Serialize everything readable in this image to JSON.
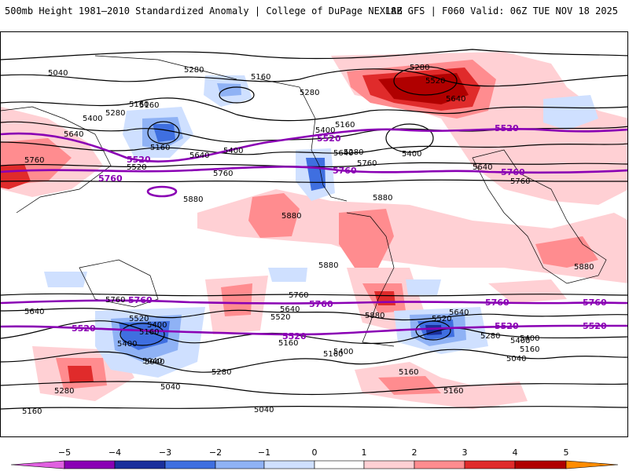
{
  "header": {
    "left_title": "500mb Height 1981–2010 Standardized Anomaly | College of DuPage NEXLAB",
    "right_title": "18Z GFS | F060 Valid: 06Z TUE NOV 18 2025"
  },
  "colors": {
    "purple_contour": "#8a00b4",
    "pos1": "#ffd0d4",
    "pos2": "#ff8c8f",
    "pos3": "#e02b2b",
    "pos4": "#b00000",
    "neg1": "#cfe0ff",
    "neg2": "#8fb2f5",
    "neg3": "#3f6fe0",
    "neg4": "#1a2f9c"
  },
  "map": {
    "contour_labels_black": [
      "5040",
      "5280",
      "5160",
      "5160",
      "5400",
      "5280",
      "5640",
      "5760",
      "5280",
      "5160",
      "5640",
      "5400",
      "5760",
      "5520",
      "5280",
      "5160",
      "5640",
      "5880",
      "5400",
      "5760",
      "5520",
      "5640",
      "5400",
      "5640",
      "5760",
      "5280",
      "5880",
      "5880",
      "5880",
      "5760",
      "5880",
      "5880",
      "5640",
      "5520",
      "5760",
      "5640",
      "5400",
      "5520",
      "5400",
      "5160",
      "5040",
      "5160",
      "5640",
      "5520",
      "5400",
      "5160",
      "5280",
      "5400",
      "5160",
      "5040",
      "5040",
      "5280",
      "5040",
      "5160",
      "5160",
      "5160",
      "5400",
      "5280",
      "5160",
      "5040"
    ],
    "contour_labels_purple": [
      "5520",
      "5520",
      "5520",
      "5760",
      "5760",
      "5760",
      "5520",
      "5760",
      "5760",
      "5760",
      "5760",
      "5520",
      "5520",
      "5520"
    ]
  },
  "colorbar": {
    "tick_labels": [
      "−5",
      "−4",
      "−3",
      "−2",
      "−1",
      "0",
      "1",
      "2",
      "3",
      "4",
      "5"
    ],
    "fill_colors": [
      "#8a00b4",
      "#1a2f9c",
      "#3f6fe0",
      "#8fb2f5",
      "#cfe0ff",
      "#ffffff",
      "#ffffff",
      "#ffd0d4",
      "#ff8c8f",
      "#e02b2b",
      "#b00000",
      "#ff8c00"
    ]
  }
}
